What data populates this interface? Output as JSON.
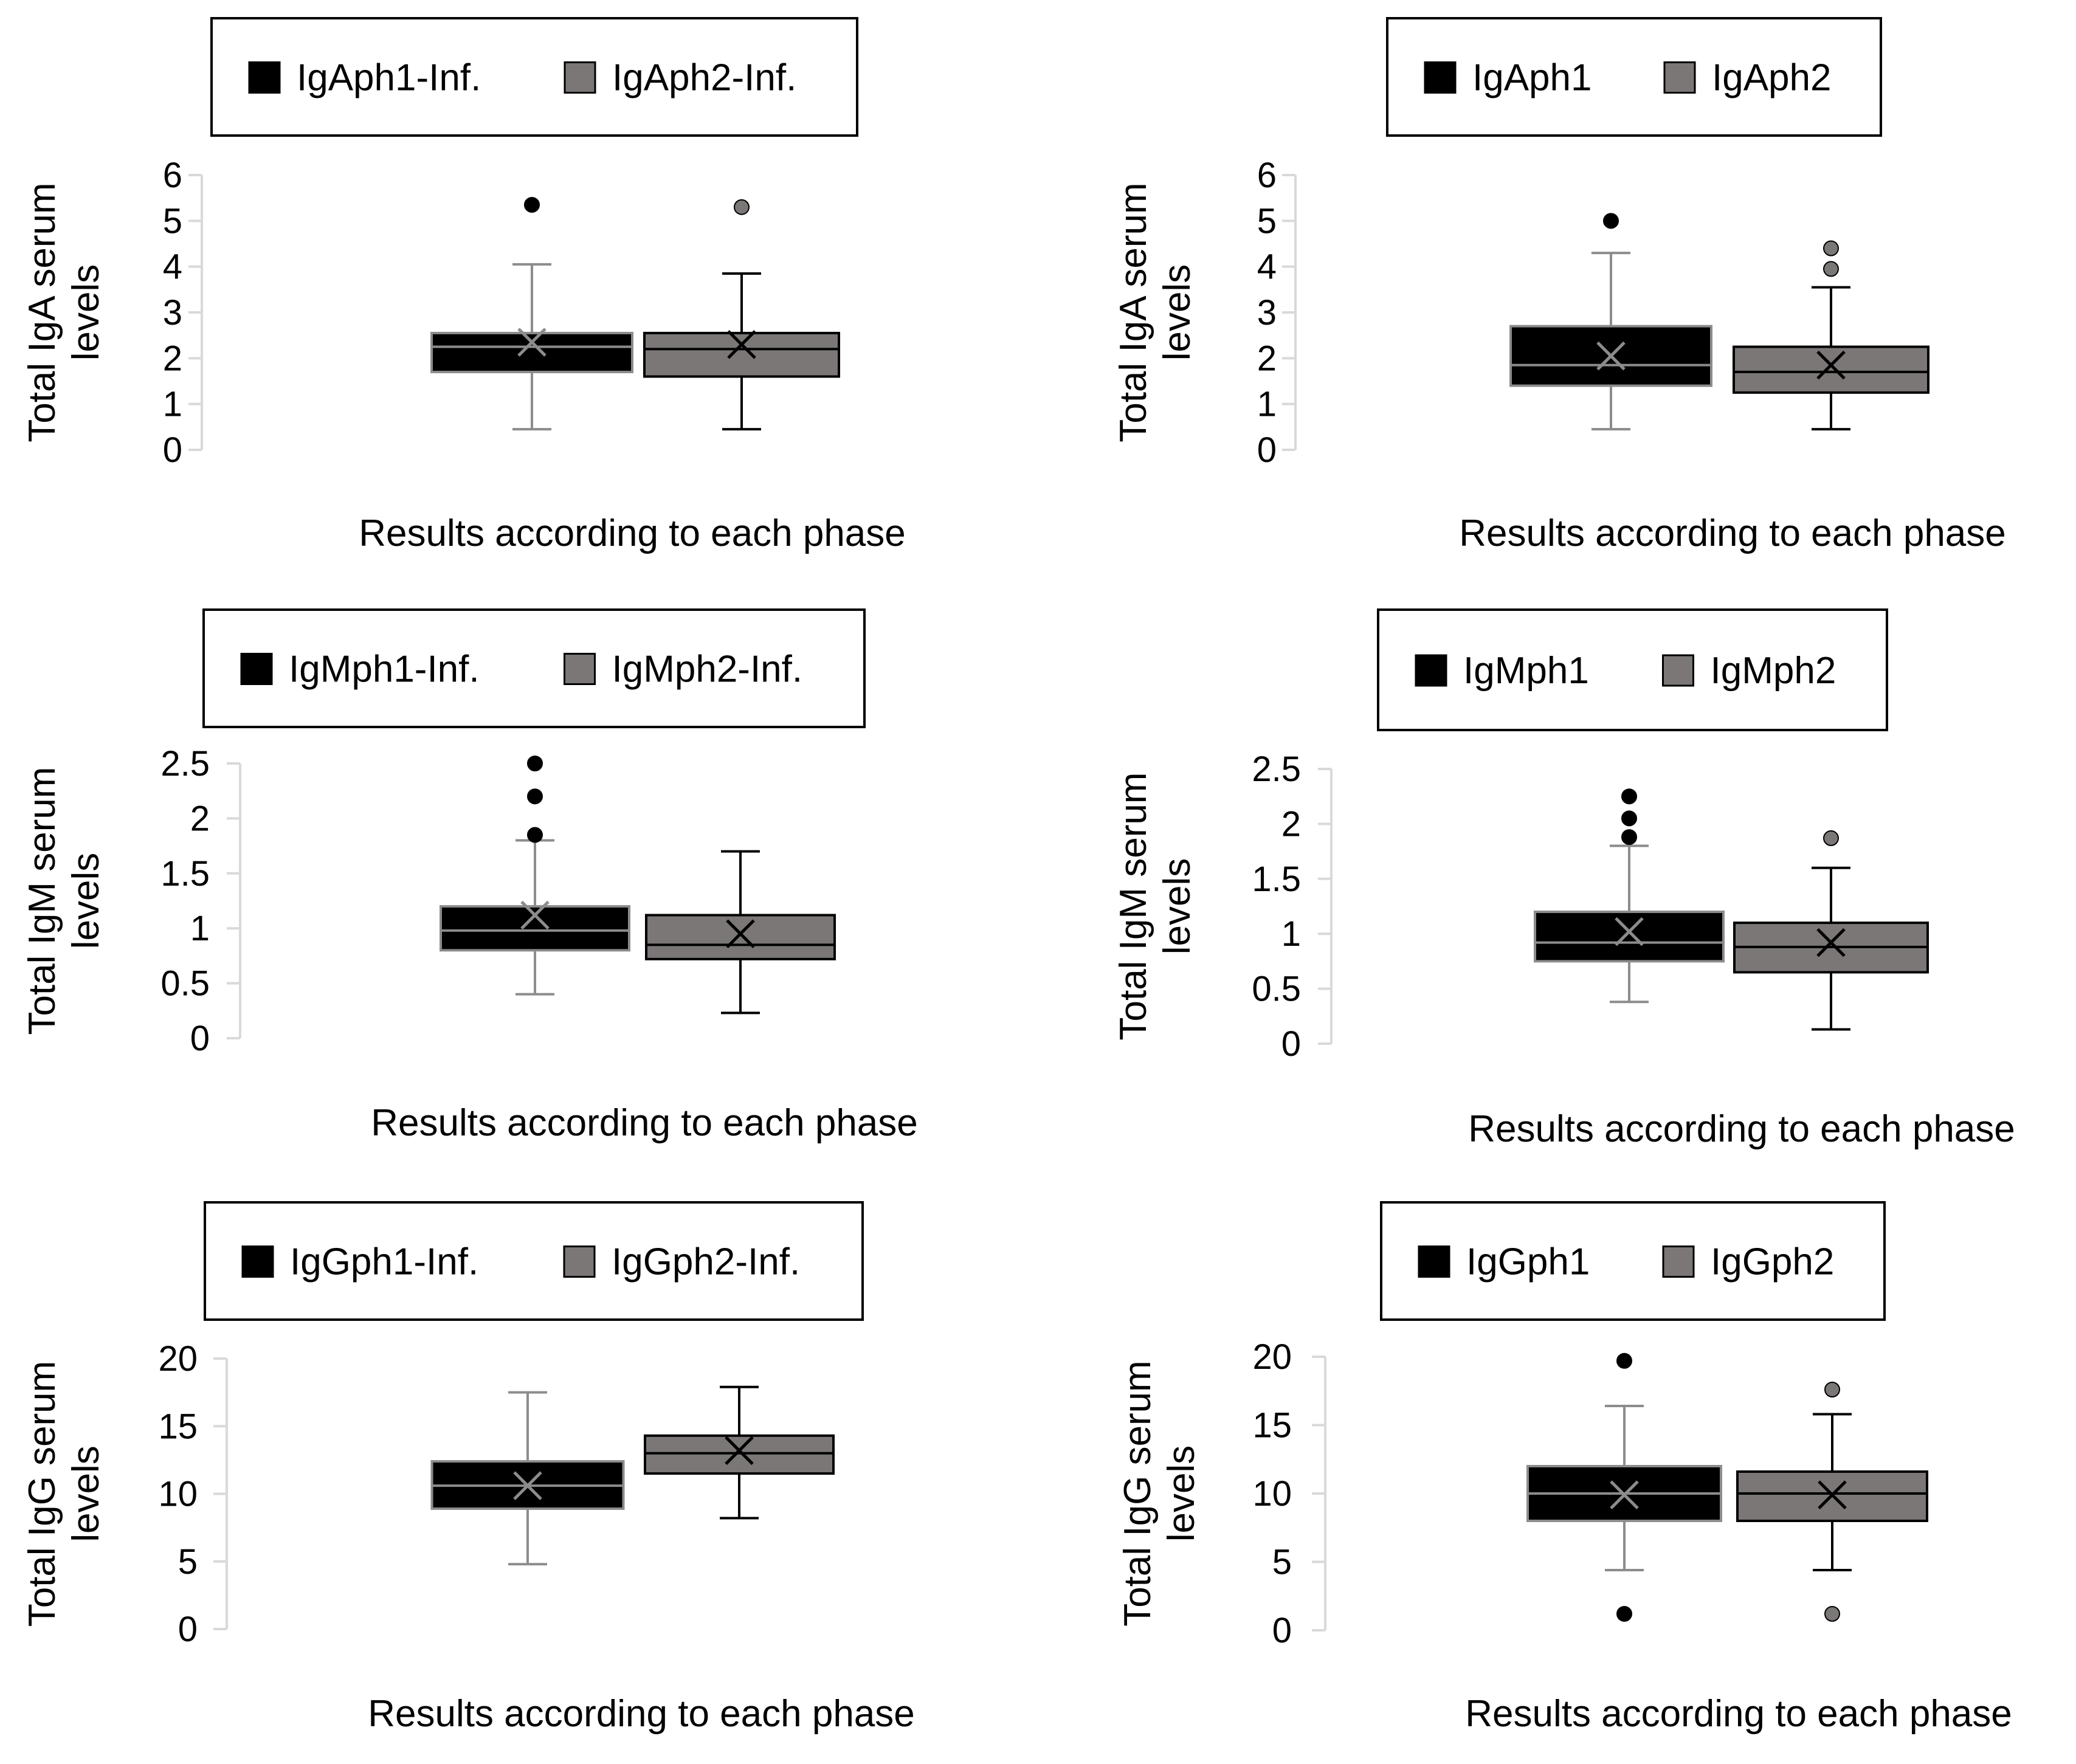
{
  "colors": {
    "phase1": "#000000",
    "phase2": "#7a7776",
    "axis": "#d9d9d9",
    "whisker_phase1": "#8c8c8c",
    "whisker_phase2": "#000000"
  },
  "chart_data": [
    {
      "type": "box",
      "title": "",
      "xlabel": "Results according to each phase",
      "ylabel": [
        "Total IgA serum",
        "levels"
      ],
      "ylim": [
        0,
        6
      ],
      "yticks": [
        "0",
        "1",
        "2",
        "3",
        "4",
        "5",
        "6"
      ],
      "legend": [
        "IgAph1-Inf.",
        "IgAph2-Inf."
      ],
      "series": [
        {
          "name": "IgAph1-Inf.",
          "min": 0.45,
          "q1": 1.7,
          "median": 2.25,
          "q3": 2.55,
          "max": 4.05,
          "mean": 2.35,
          "outliers": [
            5.35
          ]
        },
        {
          "name": "IgAph2-Inf.",
          "min": 0.45,
          "q1": 1.6,
          "median": 2.2,
          "q3": 2.55,
          "max": 3.85,
          "mean": 2.3,
          "outliers": [
            5.3
          ]
        }
      ]
    },
    {
      "type": "box",
      "title": "",
      "xlabel": "Results according to each phase",
      "ylabel": [
        "Total IgA serum",
        "levels"
      ],
      "ylim": [
        0,
        6
      ],
      "yticks": [
        "0",
        "1",
        "2",
        "3",
        "4",
        "5",
        "6"
      ],
      "legend": [
        "IgAph1",
        "IgAph2"
      ],
      "series": [
        {
          "name": "IgAph1",
          "min": 0.45,
          "q1": 1.4,
          "median": 1.85,
          "q3": 2.7,
          "max": 4.3,
          "mean": 2.05,
          "outliers": [
            5.0
          ]
        },
        {
          "name": "IgAph2",
          "min": 0.45,
          "q1": 1.25,
          "median": 1.7,
          "q3": 2.25,
          "max": 3.55,
          "mean": 1.85,
          "outliers": [
            3.95,
            4.4
          ]
        }
      ]
    },
    {
      "type": "box",
      "title": "",
      "xlabel": "Results according to each phase",
      "ylabel": [
        "Total IgM serum",
        "levels"
      ],
      "ylim": [
        0,
        2.5
      ],
      "yticks": [
        "0",
        "0.5",
        "1",
        "1.5",
        "2",
        "2.5"
      ],
      "legend": [
        "IgMph1-Inf.",
        "IgMph2-Inf."
      ],
      "series": [
        {
          "name": "IgMph1-Inf.",
          "min": 0.4,
          "q1": 0.8,
          "median": 0.98,
          "q3": 1.2,
          "max": 1.8,
          "mean": 1.12,
          "outliers": [
            1.85,
            2.2,
            2.5
          ]
        },
        {
          "name": "IgMph2-Inf.",
          "min": 0.23,
          "q1": 0.72,
          "median": 0.85,
          "q3": 1.12,
          "max": 1.7,
          "mean": 0.95,
          "outliers": []
        }
      ]
    },
    {
      "type": "box",
      "title": "",
      "xlabel": "Results according to each phase",
      "ylabel": [
        "Total IgM serum",
        "levels"
      ],
      "ylim": [
        0,
        2.5
      ],
      "yticks": [
        "0",
        "0.5",
        "1",
        "1.5",
        "2",
        "2.5"
      ],
      "legend": [
        "IgMph1",
        "IgMph2"
      ],
      "series": [
        {
          "name": "IgMph1",
          "min": 0.38,
          "q1": 0.75,
          "median": 0.92,
          "q3": 1.2,
          "max": 1.8,
          "mean": 1.02,
          "outliers": [
            1.88,
            2.05,
            2.25
          ]
        },
        {
          "name": "IgMph2",
          "min": 0.13,
          "q1": 0.65,
          "median": 0.88,
          "q3": 1.1,
          "max": 1.6,
          "mean": 0.92,
          "outliers": [
            1.87
          ]
        }
      ]
    },
    {
      "type": "box",
      "title": "",
      "xlabel": "Results according to each phase",
      "ylabel": [
        "Total IgG serum",
        "levels"
      ],
      "ylim": [
        0,
        20
      ],
      "yticks": [
        "0",
        "5",
        "10",
        "15",
        "20"
      ],
      "legend": [
        "IgGph1-Inf.",
        "IgGph2-Inf."
      ],
      "series": [
        {
          "name": "IgGph1-Inf.",
          "min": 4.8,
          "q1": 8.9,
          "median": 10.6,
          "q3": 12.4,
          "max": 17.5,
          "mean": 10.6,
          "outliers": []
        },
        {
          "name": "IgGph2-Inf.",
          "min": 8.2,
          "q1": 11.5,
          "median": 13.0,
          "q3": 14.3,
          "max": 17.9,
          "mean": 13.2,
          "outliers": []
        }
      ]
    },
    {
      "type": "box",
      "title": "",
      "xlabel": "Results according to each phase",
      "ylabel": [
        "Total IgG serum",
        "levels"
      ],
      "ylim": [
        0,
        20
      ],
      "yticks": [
        "0",
        "5",
        "10",
        "15",
        "20"
      ],
      "legend": [
        "IgGph1",
        "IgGph2"
      ],
      "series": [
        {
          "name": "IgGph1",
          "min": 4.4,
          "q1": 8.0,
          "median": 10.0,
          "q3": 12.0,
          "max": 16.4,
          "mean": 9.9,
          "outliers": [
            1.2,
            19.7
          ]
        },
        {
          "name": "IgGph2",
          "min": 4.4,
          "q1": 8.0,
          "median": 10.0,
          "q3": 11.6,
          "max": 15.8,
          "mean": 9.9,
          "outliers": [
            1.2,
            17.6
          ]
        }
      ]
    }
  ]
}
